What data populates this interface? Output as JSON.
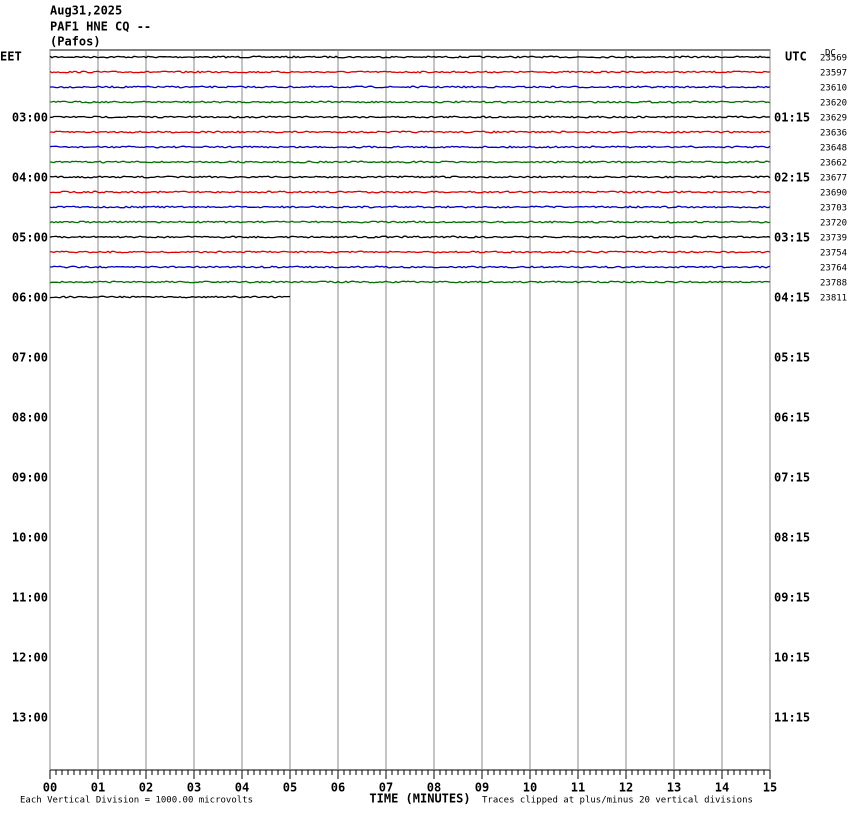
{
  "chart_data": {
    "type": "helicorder",
    "title_lines": [
      "Aug31,2025",
      "PAF1 HNE CQ --",
      "(Pafos)"
    ],
    "left_zone": "EET",
    "right_zone": "UTC",
    "dc_label": "DC",
    "left_labels": [
      "03:00",
      "04:00",
      "05:00",
      "06:00",
      "07:00",
      "08:00",
      "09:00",
      "10:00",
      "11:00",
      "12:00",
      "13:00"
    ],
    "right_labels": [
      "01:15",
      "02:15",
      "03:15",
      "04:15",
      "05:15",
      "06:15",
      "07:15",
      "08:15",
      "09:15",
      "10:15",
      "11:15"
    ],
    "xlabel": "TIME (MINUTES)",
    "scale_note": "Each Vertical Division = 1000.00 microvolts",
    "clip_note": "Traces clipped at plus/minus 20 vertical divisions",
    "xlim": [
      0,
      15
    ],
    "xticks": [
      {
        "value": 0,
        "label": "00"
      },
      {
        "value": 1,
        "label": "01"
      },
      {
        "value": 2,
        "label": "02"
      },
      {
        "value": 3,
        "label": "03"
      },
      {
        "value": 4,
        "label": "04"
      },
      {
        "value": 5,
        "label": "05"
      },
      {
        "value": 6,
        "label": "06"
      },
      {
        "value": 7,
        "label": "07"
      },
      {
        "value": 8,
        "label": "08"
      },
      {
        "value": 9,
        "label": "09"
      },
      10,
      11,
      12,
      13,
      14,
      15
    ],
    "traces": [
      {
        "dc": 23569,
        "color": "#000000",
        "end": 15
      },
      {
        "dc": 23597,
        "color": "#e00000",
        "end": 15
      },
      {
        "dc": 23610,
        "color": "#0000c0",
        "end": 15
      },
      {
        "dc": 23620,
        "color": "#007000",
        "end": 15
      },
      {
        "dc": 23629,
        "color": "#000000",
        "end": 15
      },
      {
        "dc": 23636,
        "color": "#e00000",
        "end": 15
      },
      {
        "dc": 23648,
        "color": "#0000c0",
        "end": 15
      },
      {
        "dc": 23662,
        "color": "#007000",
        "end": 15
      },
      {
        "dc": 23677,
        "color": "#000000",
        "end": 15
      },
      {
        "dc": 23690,
        "color": "#e00000",
        "end": 15
      },
      {
        "dc": 23703,
        "color": "#0000c0",
        "end": 15
      },
      {
        "dc": 23720,
        "color": "#007000",
        "end": 15
      },
      {
        "dc": 23739,
        "color": "#000000",
        "end": 15
      },
      {
        "dc": 23754,
        "color": "#e00000",
        "end": 15
      },
      {
        "dc": 23764,
        "color": "#0000c0",
        "end": 15
      },
      {
        "dc": 23788,
        "color": "#007000",
        "end": 15
      },
      {
        "dc": 23811,
        "color": "#000000",
        "end": 5
      }
    ]
  }
}
